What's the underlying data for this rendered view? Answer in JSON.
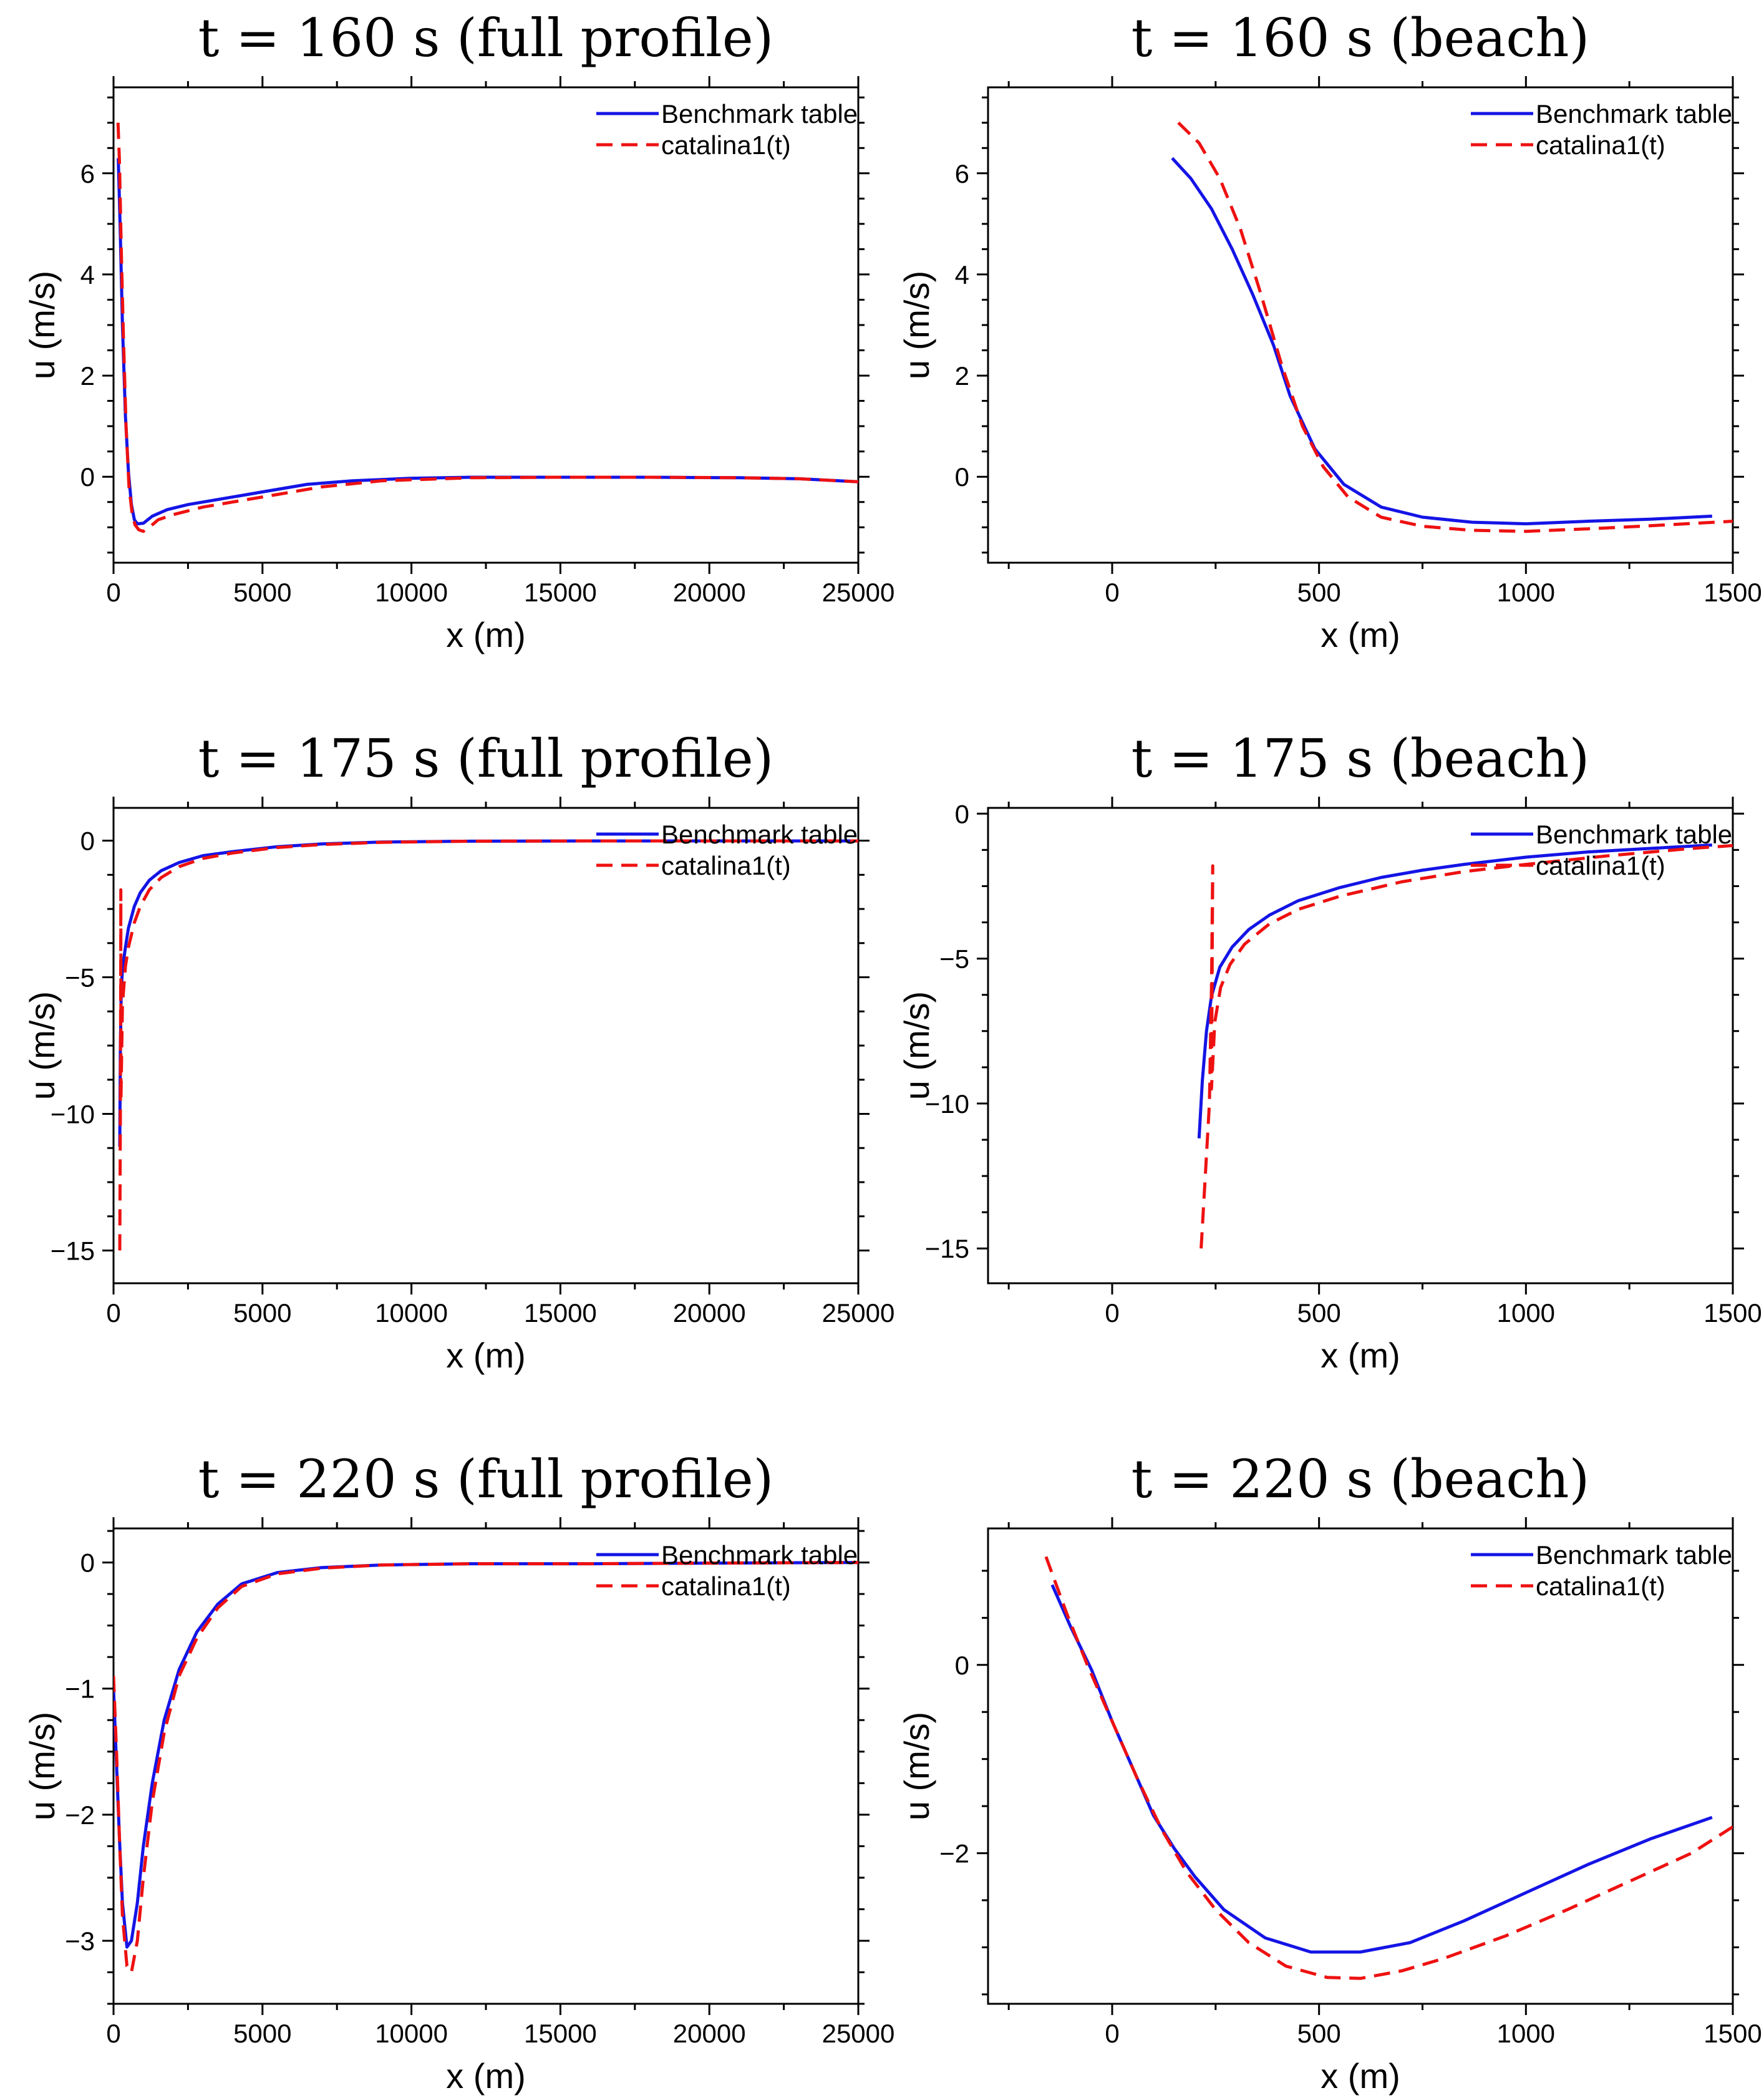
{
  "colors": {
    "benchmark": "#1414e6",
    "catalina": "#ee1111",
    "axis": "#000000"
  },
  "legend": {
    "benchmark": "Benchmark table",
    "catalina": "catalina1(t)"
  },
  "chart_data": [
    {
      "type": "line",
      "title": "t = 160 s (full profile)",
      "xlabel": "x (m)",
      "ylabel": "u (m/s)",
      "xlim": [
        0,
        25000
      ],
      "ylim": [
        -1.7,
        7.7
      ],
      "xticks": [
        0,
        5000,
        10000,
        15000,
        20000,
        25000
      ],
      "xtick_labels": [
        "0",
        "5000",
        "10000",
        "15000",
        "20000",
        "25000"
      ],
      "yticks": [
        0,
        2,
        4,
        6
      ],
      "ytick_labels": [
        "0",
        "2",
        "4",
        "6"
      ],
      "legend_position": "top-right",
      "series": [
        {
          "name": "Benchmark table",
          "style": "solid",
          "x": [
            160,
            220,
            300,
            400,
            500,
            600,
            700,
            800,
            1000,
            1300,
            1800,
            2500,
            3500,
            5000,
            6500,
            8000,
            10000,
            12000,
            15000,
            18000,
            21000,
            23000,
            25000
          ],
          "y": [
            6.3,
            5.0,
            3.0,
            1.2,
            0.1,
            -0.55,
            -0.85,
            -0.93,
            -0.92,
            -0.78,
            -0.65,
            -0.55,
            -0.45,
            -0.3,
            -0.15,
            -0.08,
            -0.03,
            -0.01,
            -0.01,
            -0.01,
            -0.02,
            -0.04,
            -0.1
          ]
        },
        {
          "name": "catalina1(t)",
          "style": "dashed",
          "x": [
            150,
            200,
            260,
            330,
            420,
            520,
            620,
            720,
            850,
            1000,
            1200,
            1500,
            2000,
            3000,
            4000,
            5500,
            7000,
            9000,
            12000,
            15000,
            18000,
            21000,
            23000,
            25000
          ],
          "y": [
            7.0,
            6.2,
            4.5,
            2.8,
            1.0,
            -0.2,
            -0.7,
            -0.95,
            -1.05,
            -1.08,
            -1.0,
            -0.85,
            -0.75,
            -0.6,
            -0.5,
            -0.35,
            -0.2,
            -0.08,
            -0.02,
            -0.01,
            -0.01,
            -0.02,
            -0.04,
            -0.1
          ]
        }
      ]
    },
    {
      "type": "line",
      "title": "t = 160 s (beach)",
      "xlabel": "x (m)",
      "ylabel": "u (m/s)",
      "xlim": [
        -300,
        1500
      ],
      "ylim": [
        -1.7,
        7.7
      ],
      "xticks": [
        0,
        500,
        1000,
        1500
      ],
      "xtick_labels": [
        "0",
        "500",
        "1000",
        "1500"
      ],
      "yticks": [
        0,
        2,
        4,
        6
      ],
      "ytick_labels": [
        "0",
        "2",
        "4",
        "6"
      ],
      "legend_position": "top-right",
      "series": [
        {
          "name": "Benchmark table",
          "style": "solid",
          "x": [
            145,
            190,
            240,
            290,
            340,
            390,
            430,
            490,
            560,
            650,
            750,
            870,
            1000,
            1150,
            1300,
            1450
          ],
          "y": [
            6.3,
            5.9,
            5.3,
            4.5,
            3.6,
            2.6,
            1.6,
            0.55,
            -0.15,
            -0.6,
            -0.8,
            -0.9,
            -0.93,
            -0.88,
            -0.84,
            -0.78
          ]
        },
        {
          "name": "catalina1(t)",
          "style": "dashed",
          "x": [
            160,
            210,
            260,
            310,
            360,
            410,
            460,
            510,
            570,
            650,
            750,
            870,
            1000,
            1150,
            1300,
            1500
          ],
          "y": [
            7.0,
            6.6,
            5.9,
            4.9,
            3.6,
            2.2,
            1.0,
            0.2,
            -0.4,
            -0.8,
            -0.98,
            -1.06,
            -1.08,
            -1.03,
            -0.97,
            -0.88
          ]
        }
      ]
    },
    {
      "type": "line",
      "title": "t = 175 s (full profile)",
      "xlabel": "x (m)",
      "ylabel": "u (m/s)",
      "xlim": [
        0,
        25000
      ],
      "ylim": [
        -16.2,
        1.2
      ],
      "xticks": [
        0,
        5000,
        10000,
        15000,
        20000,
        25000
      ],
      "xtick_labels": [
        "0",
        "5000",
        "10000",
        "15000",
        "20000",
        "25000"
      ],
      "yticks": [
        0,
        -5,
        -10,
        -15
      ],
      "ytick_labels": [
        "0",
        "−5",
        "−10",
        "−15"
      ],
      "legend_position": "top-right",
      "series": [
        {
          "name": "Benchmark table",
          "style": "solid",
          "x": [
            210,
            230,
            260,
            300,
            400,
            500,
            700,
            900,
            1200,
            1600,
            2200,
            3000,
            4000,
            5500,
            7000,
            9000,
            12000,
            16000,
            20000,
            25000
          ],
          "y": [
            -11.2,
            -7.5,
            -5.5,
            -4.7,
            -3.9,
            -3.2,
            -2.4,
            -1.9,
            -1.45,
            -1.1,
            -0.8,
            -0.55,
            -0.4,
            -0.22,
            -0.12,
            -0.05,
            -0.02,
            -0.01,
            -0.01,
            -0.01
          ]
        },
        {
          "name": "catalina1(t)",
          "style": "dashed",
          "x": [
            210,
            230,
            240,
            245,
            250,
            300,
            400,
            500,
            700,
            900,
            1200,
            1600,
            2200,
            3000,
            4000,
            5500,
            7000,
            9000,
            12000,
            16000,
            20000,
            25000
          ],
          "y": [
            -15.0,
            -10.0,
            -5.0,
            -1.8,
            -9.5,
            -6.0,
            -4.6,
            -3.9,
            -3.0,
            -2.4,
            -1.8,
            -1.35,
            -0.95,
            -0.65,
            -0.45,
            -0.25,
            -0.14,
            -0.06,
            -0.02,
            -0.01,
            -0.01,
            -0.01
          ]
        }
      ]
    },
    {
      "type": "line",
      "title": "t = 175 s (beach)",
      "xlabel": "x (m)",
      "ylabel": "u (m/s)",
      "xlim": [
        -300,
        1500
      ],
      "ylim": [
        -16.2,
        0.2
      ],
      "xticks": [
        0,
        500,
        1000,
        1500
      ],
      "xtick_labels": [
        "0",
        "500",
        "1000",
        "1500"
      ],
      "yticks": [
        0,
        -5,
        -10,
        -15
      ],
      "ytick_labels": [
        "0",
        "−5",
        "−10",
        "−15"
      ],
      "legend_position": "top-right",
      "series": [
        {
          "name": "Benchmark table",
          "style": "solid",
          "x": [
            210,
            218,
            228,
            240,
            260,
            290,
            330,
            380,
            450,
            550,
            650,
            750,
            850,
            1000,
            1150,
            1300,
            1450
          ],
          "y": [
            -11.2,
            -9.2,
            -7.5,
            -6.3,
            -5.3,
            -4.6,
            -4.0,
            -3.5,
            -3.0,
            -2.55,
            -2.2,
            -1.95,
            -1.75,
            -1.5,
            -1.32,
            -1.2,
            -1.08
          ]
        },
        {
          "name": "catalina1(t)",
          "style": "dashed",
          "x": [
            215,
            225,
            235,
            240,
            243,
            240,
            248,
            262,
            285,
            320,
            380,
            450,
            550,
            700,
            850,
            1000,
            1200,
            1400,
            1500
          ],
          "y": [
            -15.0,
            -12.5,
            -10.0,
            -6.0,
            -1.8,
            -9.5,
            -7.2,
            -6.0,
            -5.2,
            -4.5,
            -3.8,
            -3.3,
            -2.85,
            -2.35,
            -2.0,
            -1.75,
            -1.45,
            -1.2,
            -1.1
          ]
        }
      ]
    },
    {
      "type": "line",
      "title": "t = 220 s (full profile)",
      "xlabel": "x (m)",
      "ylabel": "u (m/s)",
      "xlim": [
        0,
        25000
      ],
      "ylim": [
        -3.5,
        0.27
      ],
      "xticks": [
        0,
        5000,
        10000,
        15000,
        20000,
        25000
      ],
      "xtick_labels": [
        "0",
        "5000",
        "10000",
        "15000",
        "20000",
        "25000"
      ],
      "yticks": [
        0,
        -1,
        -2,
        -3
      ],
      "ytick_labels": [
        "0",
        "−1",
        "−2",
        "−3"
      ],
      "legend_position": "top-right",
      "series": [
        {
          "name": "Benchmark table",
          "style": "solid",
          "x": [
            0,
            100,
            200,
            300,
            450,
            600,
            800,
            1000,
            1300,
            1700,
            2200,
            2800,
            3500,
            4300,
            5500,
            7000,
            9000,
            12000,
            16000,
            20000,
            25000
          ],
          "y": [
            -1.0,
            -1.6,
            -2.2,
            -2.7,
            -3.05,
            -3.0,
            -2.7,
            -2.25,
            -1.75,
            -1.25,
            -0.85,
            -0.55,
            -0.33,
            -0.17,
            -0.08,
            -0.04,
            -0.02,
            -0.01,
            -0.01,
            -0.005,
            0
          ]
        },
        {
          "name": "catalina1(t)",
          "style": "dashed",
          "x": [
            0,
            100,
            200,
            300,
            450,
            600,
            800,
            1000,
            1300,
            1700,
            2200,
            2800,
            3500,
            4300,
            5500,
            7000,
            9000,
            12000,
            16000,
            20000,
            25000
          ],
          "y": [
            -0.9,
            -1.5,
            -2.2,
            -2.8,
            -3.2,
            -3.25,
            -3.0,
            -2.5,
            -1.9,
            -1.35,
            -0.9,
            -0.6,
            -0.36,
            -0.19,
            -0.09,
            -0.045,
            -0.02,
            -0.01,
            -0.01,
            -0.005,
            0
          ]
        }
      ]
    },
    {
      "type": "line",
      "title": "t = 220 s (beach)",
      "xlabel": "x (m)",
      "ylabel": "u (m/s)",
      "xlim": [
        -300,
        1500
      ],
      "ylim": [
        -3.6,
        1.45
      ],
      "xticks": [
        0,
        500,
        1000,
        1500
      ],
      "xtick_labels": [
        "0",
        "500",
        "1000",
        "1500"
      ],
      "yticks": [
        0,
        -2
      ],
      "ytick_labels": [
        "0",
        "−2"
      ],
      "legend_position": "top-right",
      "series": [
        {
          "name": "Benchmark table",
          "style": "solid",
          "x": [
            -145,
            -100,
            -50,
            0,
            50,
            100,
            150,
            200,
            270,
            370,
            480,
            600,
            720,
            850,
            1000,
            1150,
            1300,
            1450
          ],
          "y": [
            0.85,
            0.4,
            -0.05,
            -0.6,
            -1.1,
            -1.6,
            -1.95,
            -2.25,
            -2.6,
            -2.9,
            -3.05,
            -3.05,
            -2.95,
            -2.72,
            -2.42,
            -2.12,
            -1.85,
            -1.62
          ]
        },
        {
          "name": "catalina1(t)",
          "style": "dashed",
          "x": [
            -160,
            -110,
            -60,
            0,
            60,
            120,
            180,
            250,
            330,
            420,
            520,
            600,
            700,
            800,
            950,
            1100,
            1250,
            1400,
            1500
          ],
          "y": [
            1.15,
            0.55,
            0.0,
            -0.6,
            -1.2,
            -1.75,
            -2.2,
            -2.6,
            -2.95,
            -3.2,
            -3.32,
            -3.33,
            -3.25,
            -3.12,
            -2.88,
            -2.6,
            -2.3,
            -2.0,
            -1.72
          ]
        }
      ]
    }
  ]
}
